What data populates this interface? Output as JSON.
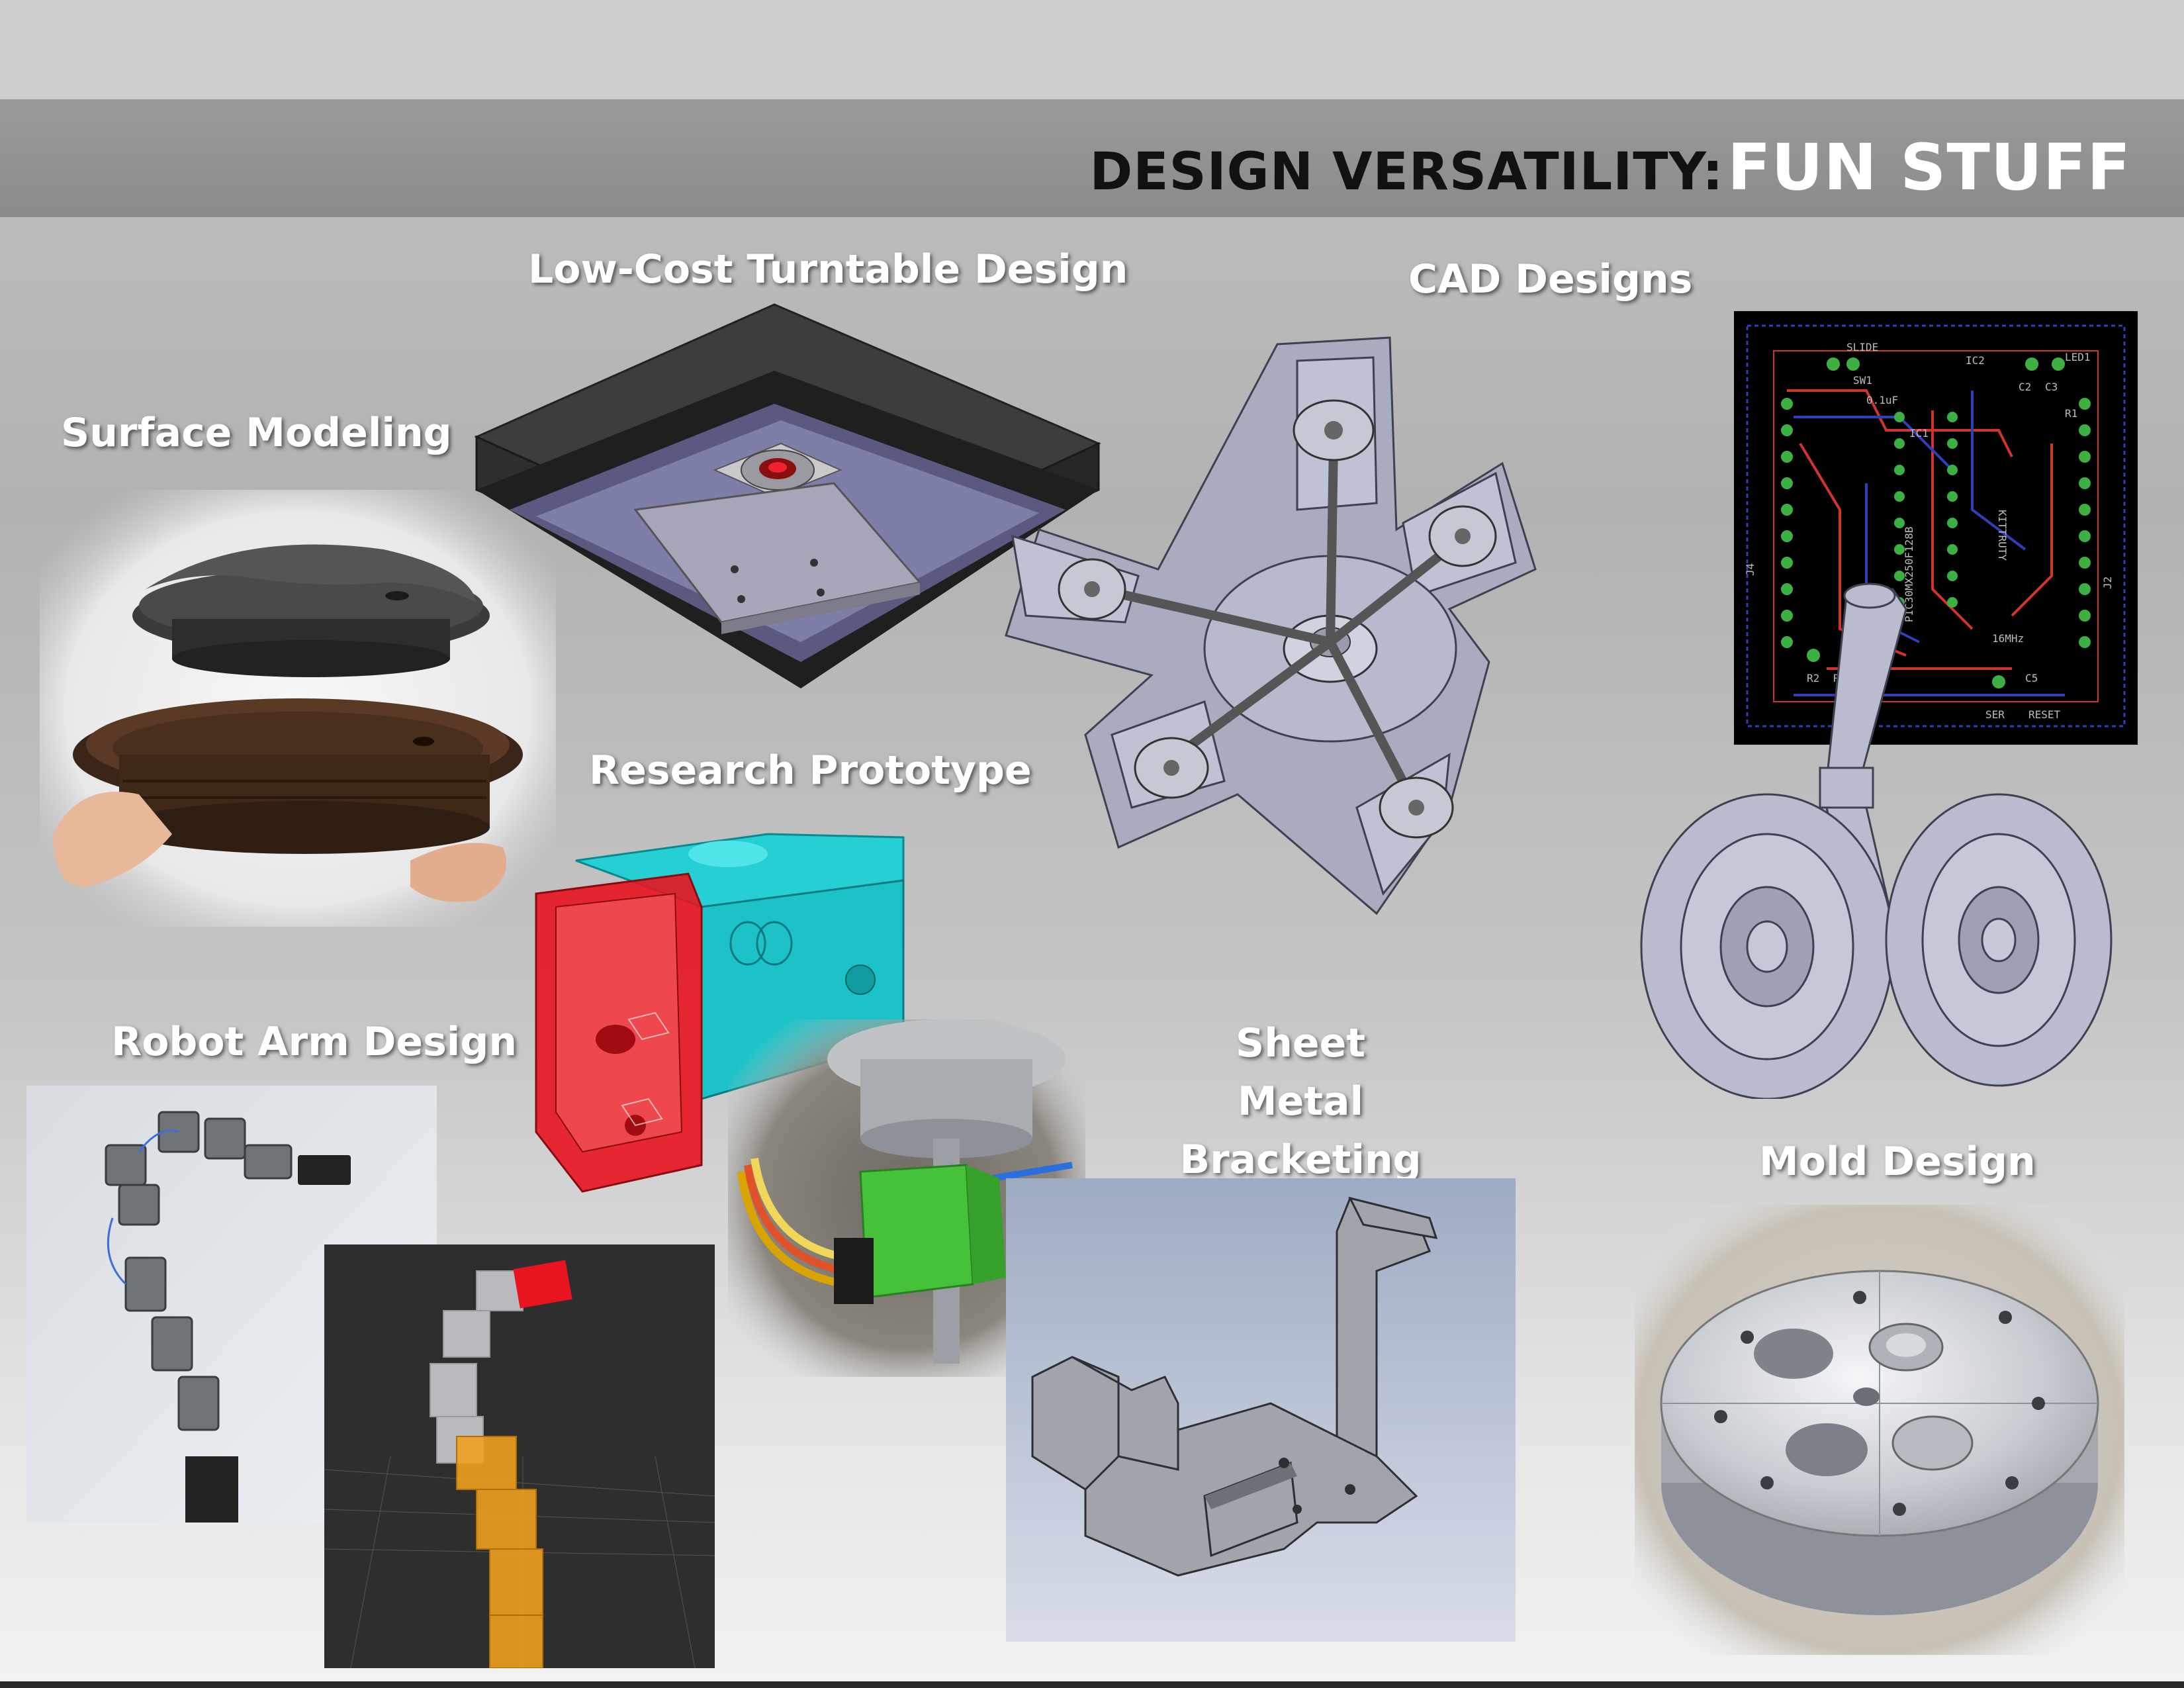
{
  "header": {
    "title_prefix": "DESIGN VERSATILITY:",
    "title_main": "FUN STUFF"
  },
  "sections": {
    "turntable": "Low-Cost Turntable Design",
    "cad": "CAD Designs",
    "surface": "Surface Modeling",
    "research": "Research Prototype",
    "robot": "Robot Arm Design",
    "sheet_metal": "Sheet Metal Bracketing",
    "mold": "Mold Design"
  },
  "pcb": {
    "labels": [
      "SLIDE",
      "SW1",
      "0.1uF",
      "IC2",
      "LED1",
      "C2",
      "C3",
      "R1",
      "IC1",
      "PIC30MX250F128B",
      "KITTRUTY",
      "J4",
      "J2",
      "R2",
      "R3",
      "C5",
      "16MHz",
      "SER",
      "RESET"
    ]
  },
  "colors": {
    "title_bar": "#8f8f8f",
    "label_text": "#ffffff",
    "title_prefix": "#111111",
    "pcb_bg": "#000000",
    "pcb_trace_red": "#d0342c",
    "pcb_trace_blue": "#2f3fb8",
    "pcb_pad": "#3cb043",
    "prototype_red": "#e8141f",
    "prototype_cyan": "#18d0d6",
    "cad_gray": "#a7aabd"
  }
}
